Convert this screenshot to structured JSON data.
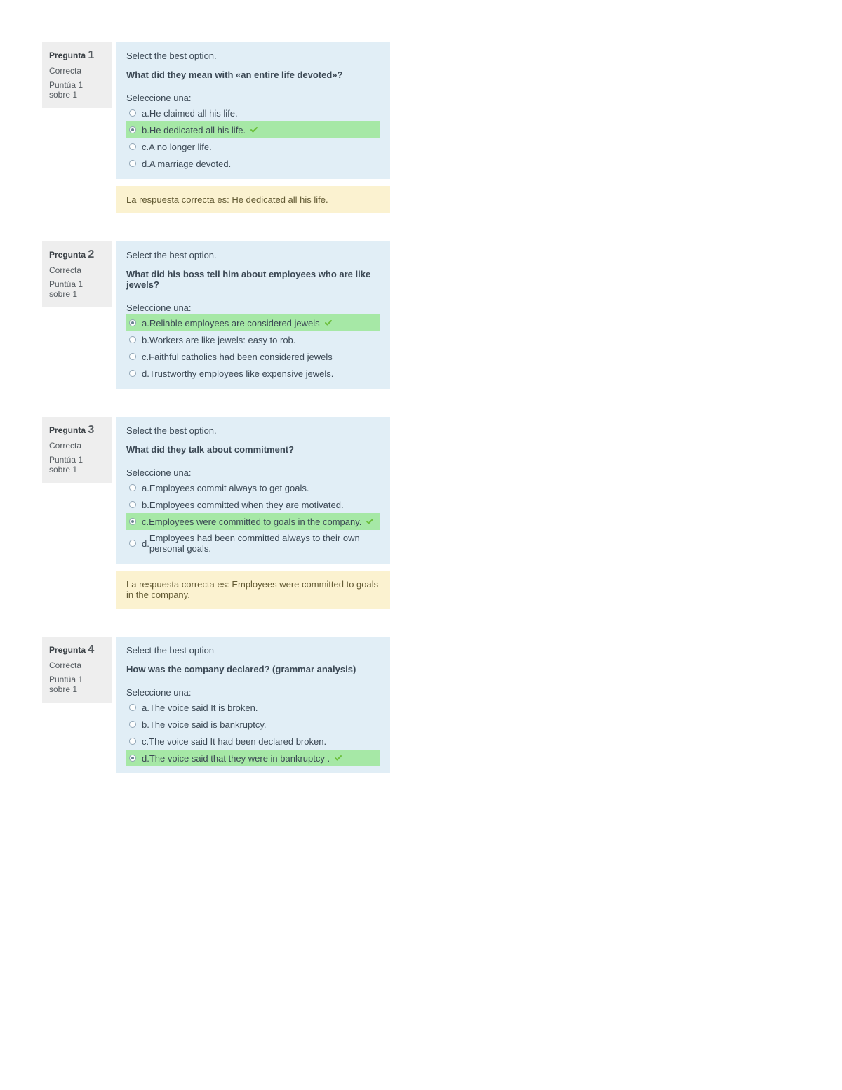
{
  "labels": {
    "question_word": "Pregunta",
    "select_prompt": "Seleccione una:",
    "feedback_prefix": "La respuesta correcta es: "
  },
  "colors": {
    "page_bg": "#ffffff",
    "info_bg": "#eeeeee",
    "formulation_bg": "#e1eef6",
    "correct_bg": "#a6e8a6",
    "feedback_bg": "#fbf2d0",
    "text": "#3b4146",
    "check": "#6bbf3b"
  },
  "questions": [
    {
      "number": "1",
      "state": "Correcta",
      "grade": "Puntúa 1 sobre 1",
      "instruction": "Select the best option.",
      "text": "What did they mean with «an entire life devoted»?",
      "options": [
        {
          "letter": "a.",
          "text": "He claimed all his life.",
          "correct": false,
          "selected": false
        },
        {
          "letter": "b.",
          "text": "He dedicated all his life.",
          "correct": true,
          "selected": true
        },
        {
          "letter": "c.",
          "text": "A no longer life.",
          "correct": false,
          "selected": false
        },
        {
          "letter": "d.",
          "text": "A marriage devoted.",
          "correct": false,
          "selected": false
        }
      ],
      "feedback": "He dedicated all his life."
    },
    {
      "number": "2",
      "state": "Correcta",
      "grade": "Puntúa 1 sobre 1",
      "instruction": "Select the best option.",
      "text": "What did his boss tell him about employees who are like jewels?",
      "options": [
        {
          "letter": "a.",
          "text": "Reliable employees are considered jewels",
          "correct": true,
          "selected": true
        },
        {
          "letter": "b.",
          "text": "Workers are like jewels: easy to rob.",
          "correct": false,
          "selected": false
        },
        {
          "letter": "c.",
          "text": "Faithful catholics had been considered jewels",
          "correct": false,
          "selected": false
        },
        {
          "letter": "d.",
          "text": "Trustworthy employees like expensive jewels.",
          "correct": false,
          "selected": false
        }
      ],
      "feedback": null
    },
    {
      "number": "3",
      "state": "Correcta",
      "grade": "Puntúa 1 sobre 1",
      "instruction": "Select the best option.",
      "text": "What did they talk about commitment?",
      "options": [
        {
          "letter": "a.",
          "text": "Employees commit always to get goals.",
          "correct": false,
          "selected": false
        },
        {
          "letter": "b.",
          "text": "Employees committed when they are motivated.",
          "correct": false,
          "selected": false
        },
        {
          "letter": "c.",
          "text": "Employees were committed to goals in the company.",
          "correct": true,
          "selected": true
        },
        {
          "letter": "d.",
          "text": "Employees had been committed always to their own personal goals.",
          "correct": false,
          "selected": false
        }
      ],
      "feedback": "Employees were committed to goals in the company."
    },
    {
      "number": "4",
      "state": "Correcta",
      "grade": "Puntúa 1 sobre 1",
      "instruction": "Select the best option",
      "text": "How was the company declared? (grammar analysis)",
      "options": [
        {
          "letter": "a.",
          "text": "The voice said It is broken.",
          "correct": false,
          "selected": false
        },
        {
          "letter": "b.",
          "text": "The voice said is bankruptcy.",
          "correct": false,
          "selected": false
        },
        {
          "letter": "c.",
          "text": "The voice said It had been declared broken.",
          "correct": false,
          "selected": false
        },
        {
          "letter": "d.",
          "text": "The voice said that they were in bankruptcy .",
          "correct": true,
          "selected": true
        }
      ],
      "feedback": null
    }
  ]
}
